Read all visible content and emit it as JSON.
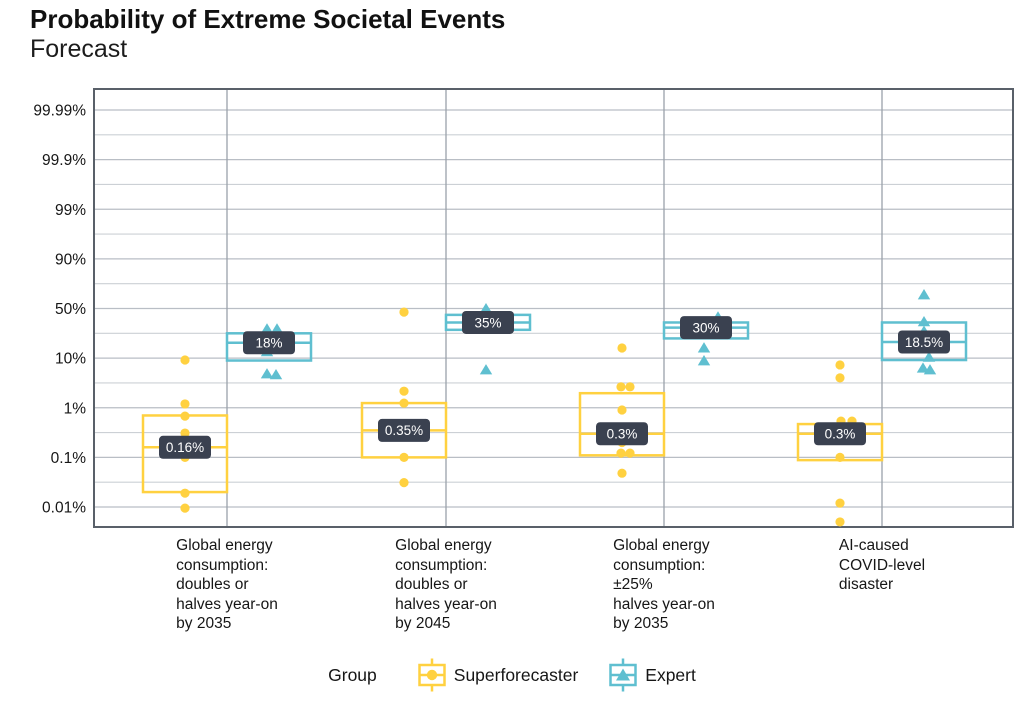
{
  "page": {
    "title": "Probability of Extreme Societal Events",
    "subtitle": "Forecast"
  },
  "legend": {
    "group_label": "Group",
    "items": [
      {
        "label": "Superforecaster",
        "marker": "circle"
      },
      {
        "label": "Expert",
        "marker": "triangle"
      }
    ]
  },
  "colors": {
    "superforecaster": "#FFD140",
    "expert": "#5FBFD0",
    "median_label_bg": "#3A4150",
    "median_label_text": "#FFFFFF",
    "grid_major": "#b9bec5",
    "grid_minor": "#ccd0d5",
    "grid_vertical": "#9aa1aa",
    "plot_border": "#596069",
    "text": "#161616"
  },
  "chart_data": {
    "type": "boxplot",
    "title": "Probability of Extreme Societal Events",
    "subtitle": "Forecast",
    "legend_position": "bottom",
    "grid": true,
    "y_axis": {
      "scale": "log-odds",
      "tick_labels": [
        "99.99%",
        "99.9%",
        "99%",
        "90%",
        "50%",
        "10%",
        "1%",
        "0.1%",
        "0.01%"
      ],
      "tick_values": [
        99.99,
        99.9,
        99,
        90,
        50,
        10,
        1,
        0.1,
        0.01
      ]
    },
    "groups": [
      "Superforecaster",
      "Expert"
    ],
    "categories": [
      {
        "label_lines": [
          "Global energy",
          "consumption:",
          "doubles or",
          "halves year-on",
          "by 2035"
        ],
        "superforecaster": {
          "median_label": "0.16%",
          "median": 0.16,
          "q3": 0.7,
          "q1": 0.02,
          "points": [
            [
              9.2,
              0
            ],
            [
              1.2,
              0
            ],
            [
              0.68,
              0
            ],
            [
              0.31,
              0
            ],
            [
              0.1,
              0
            ],
            [
              0.019,
              0
            ],
            [
              0.0095,
              0
            ]
          ]
        },
        "expert": {
          "median_label": "18%",
          "median": 18,
          "q3": 25,
          "q1": 9,
          "points": [
            [
              29,
              -2
            ],
            [
              29,
              8
            ],
            [
              13,
              -2
            ],
            [
              5,
              -2
            ],
            [
              4.8,
              7
            ]
          ]
        }
      },
      {
        "label_lines": [
          "Global energy",
          "consumption:",
          "doubles or",
          "halves year-on",
          "by 2045"
        ],
        "superforecaster": {
          "median_label": "0.35%",
          "median": 0.35,
          "q3": 1.25,
          "q1": 0.1,
          "points": [
            [
              46,
              0
            ],
            [
              2.2,
              0
            ],
            [
              1.25,
              0
            ],
            [
              0.1,
              0
            ],
            [
              0.031,
              0
            ]
          ]
        },
        "expert": {
          "median_label": "35%",
          "median": 35,
          "q3": 43,
          "q1": 28,
          "points": [
            [
              50,
              -2
            ],
            [
              6,
              -2
            ]
          ]
        }
      },
      {
        "label_lines": [
          "Global energy",
          "consumption:",
          "±25%",
          "halves year-on",
          "by 2035"
        ],
        "superforecaster": {
          "median_label": "0.3%",
          "median": 0.3,
          "q3": 2,
          "q1": 0.11,
          "points": [
            [
              14.8,
              0
            ],
            [
              2.7,
              -1
            ],
            [
              2.7,
              8
            ],
            [
              0.9,
              0
            ],
            [
              0.2,
              0
            ],
            [
              0.122,
              -1
            ],
            [
              0.122,
              8
            ],
            [
              0.048,
              0
            ]
          ]
        },
        "expert": {
          "median_label": "30%",
          "median": 30,
          "q3": 35,
          "q1": 21,
          "points": [
            [
              41,
              12
            ],
            [
              15,
              -2
            ],
            [
              9,
              -2
            ]
          ]
        }
      },
      {
        "label_lines": [
          "AI-caused",
          "COVID-level",
          "disaster"
        ],
        "superforecaster": {
          "median_label": "0.3%",
          "median": 0.3,
          "q3": 0.47,
          "q1": 0.088,
          "points": [
            [
              7.4,
              0
            ],
            [
              4.1,
              0
            ],
            [
              0.54,
              12
            ],
            [
              0.54,
              1
            ],
            [
              0.1,
              0
            ],
            [
              0.012,
              0
            ],
            [
              0.005,
              0
            ]
          ]
        },
        "expert": {
          "median_label": "18.5%",
          "median": 18.5,
          "q3": 35,
          "q1": 9.2,
          "points": [
            [
              65,
              0
            ],
            [
              36,
              0
            ],
            [
              27,
              0
            ],
            [
              10.5,
              5
            ],
            [
              6.5,
              -1
            ],
            [
              6,
              6
            ]
          ]
        }
      }
    ]
  }
}
